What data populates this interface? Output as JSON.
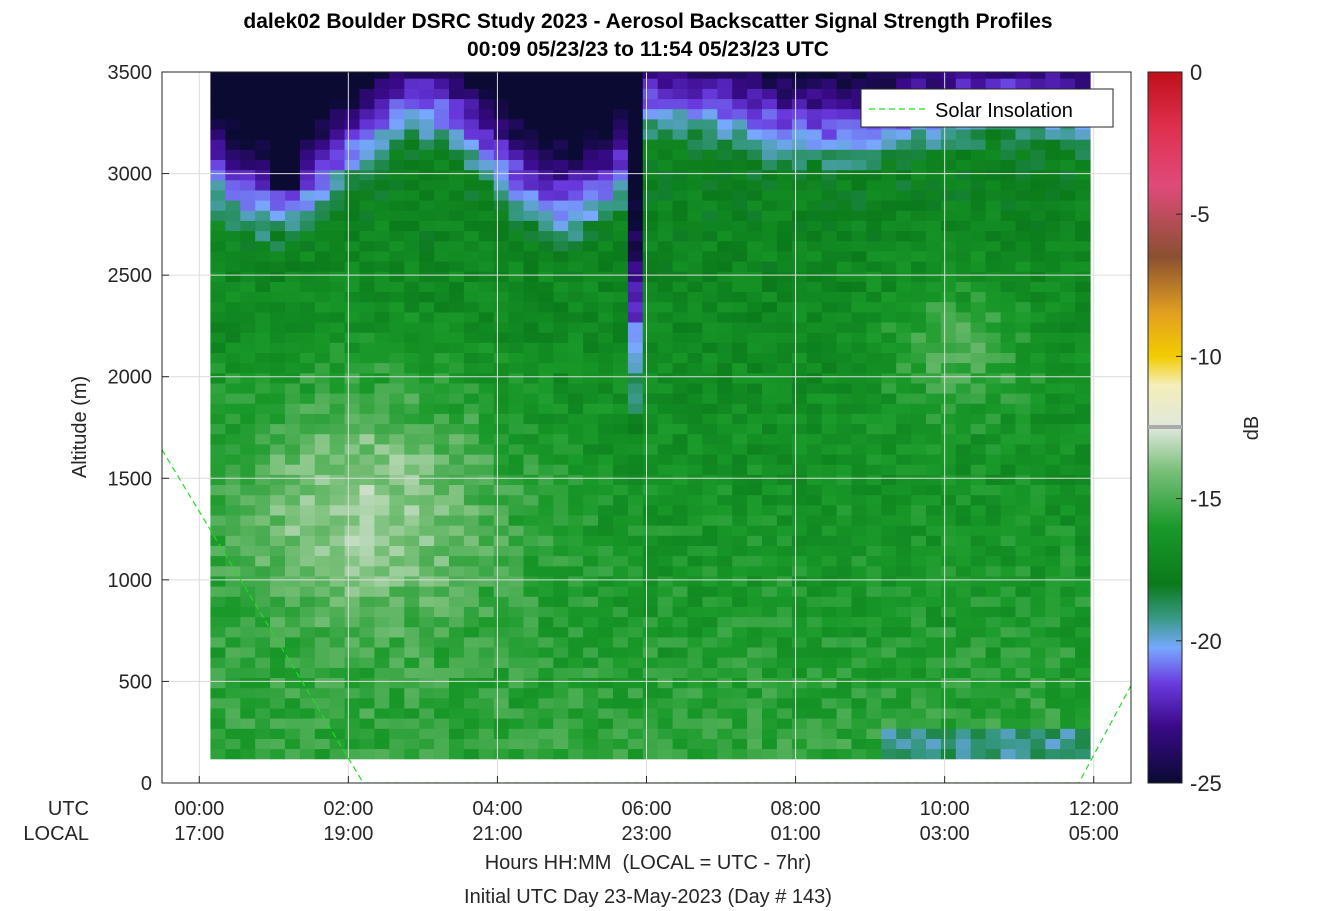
{
  "chart_data": {
    "type": "heatmap",
    "title_line1": "dalek02 Boulder DSRC Study 2023 - Aerosol Backscatter Signal Strength Profiles",
    "title_line2": "00:09 05/23/23 to 11:54 05/23/23  UTC",
    "ylabel": "Altitude (m)",
    "xlabel": "Hours HH:MM  (LOCAL = UTC - 7hr)",
    "xlabel2": "Initial UTC Day 23-May-2023 (Day # 143)",
    "row_label_utc": "UTC",
    "row_label_local": "LOCAL",
    "x_ticks_utc": [
      "00:00",
      "02:00",
      "04:00",
      "06:00",
      "08:00",
      "10:00",
      "12:00"
    ],
    "x_ticks_local": [
      "17:00",
      "19:00",
      "21:00",
      "23:00",
      "01:00",
      "03:00",
      "05:00"
    ],
    "x_tick_hours": [
      0,
      2,
      4,
      6,
      8,
      10,
      12
    ],
    "xlim_hours": [
      -0.5,
      12.5
    ],
    "y_ticks": [
      0,
      500,
      1000,
      1500,
      2000,
      2500,
      3000,
      3500
    ],
    "ylim": [
      0,
      3500
    ],
    "colorbar_label": "dB",
    "colorbar_ticks": [
      0,
      -5,
      -10,
      -15,
      -20,
      -25
    ],
    "colorbar_range": [
      -25,
      0
    ],
    "data_time_range_hours": [
      0.15,
      11.9
    ],
    "data_alt_range_m": [
      120,
      3500
    ],
    "grid": true,
    "legend": {
      "label": "Solar Insolation",
      "color": "#22dd22",
      "placement": "top-right"
    },
    "solar_insolation_line": {
      "x_hours": [
        -0.5,
        2.2,
        11.8,
        12.5
      ],
      "y_m": [
        1640,
        0,
        0,
        480
      ]
    }
  }
}
